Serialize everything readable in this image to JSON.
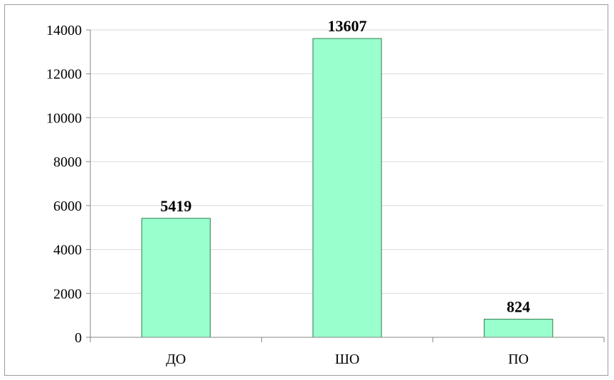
{
  "chart_data": {
    "type": "bar",
    "categories": [
      "ДО",
      "ШО",
      "ПО"
    ],
    "values": [
      5419,
      13607,
      824
    ],
    "data_labels": [
      "5419",
      "13607",
      "824"
    ],
    "y_ticks": [
      "0",
      "2000",
      "4000",
      "6000",
      "8000",
      "10000",
      "12000",
      "14000"
    ],
    "ylim": [
      0,
      14000
    ],
    "grid": true,
    "legend": "none",
    "title": "",
    "xlabel": "",
    "ylabel": "",
    "colors": {
      "bar_fill": "#99ffcc",
      "bar_stroke": "#2e7d4f",
      "grid": "#d9d9d9",
      "axis": "#868686"
    }
  }
}
